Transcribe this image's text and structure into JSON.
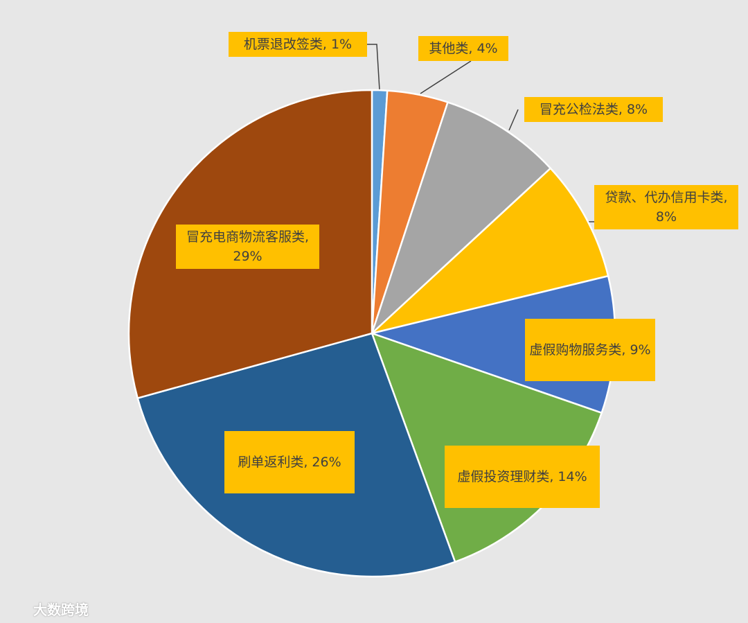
{
  "chart_data": {
    "type": "pie",
    "categories": [
      "机票退改签类,",
      "其他类,",
      "冒充公检法类,",
      "贷款、代办信用卡类,",
      "虚假购物服务类,",
      "虚假投资理财类,",
      "刷单返利类,",
      "冒充电商物流客服类,"
    ],
    "values": [
      1,
      4,
      8,
      8,
      9,
      14,
      26,
      29
    ],
    "value_labels": [
      "1%",
      "4%",
      "8%",
      "8%",
      "9%",
      "14%",
      "26%",
      "29%"
    ],
    "colors": [
      "#5b9bd5",
      "#ed7d31",
      "#a5a5a5",
      "#ffc000",
      "#4472c4",
      "#70ad47",
      "#255e91",
      "#9e480e"
    ],
    "label_color": "#ffc000"
  },
  "watermark": "大数跨境"
}
